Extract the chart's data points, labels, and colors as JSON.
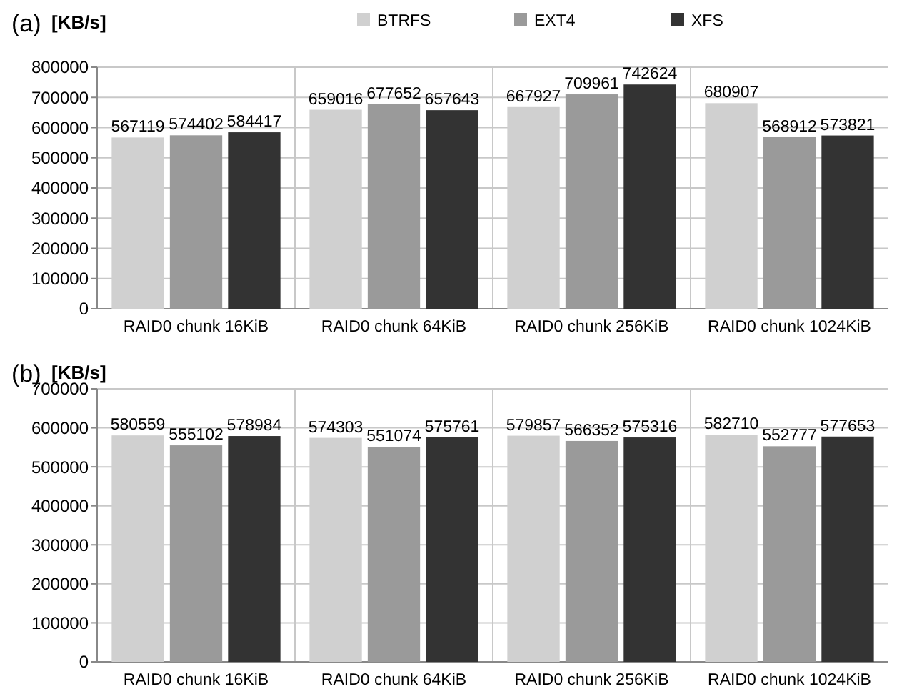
{
  "chart_data": [
    {
      "type": "bar",
      "title": "(a)",
      "ylabel": "[KB/s]",
      "categories": [
        "RAID0 chunk 16KiB",
        "RAID0 chunk 64KiB",
        "RAID0 chunk 256KiB",
        "RAID0 chunk 1024KiB"
      ],
      "series": [
        {
          "name": "BTRFS",
          "color": "#d0d0d0",
          "values": [
            567119,
            659016,
            667927,
            680907
          ]
        },
        {
          "name": "EXT4",
          "color": "#9a9a9a",
          "values": [
            574402,
            677652,
            709961,
            568912
          ]
        },
        {
          "name": "XFS",
          "color": "#333333",
          "values": [
            584417,
            657643,
            742624,
            573821
          ]
        }
      ],
      "ylim": [
        0,
        800000
      ],
      "yticks": [
        0,
        100000,
        200000,
        300000,
        400000,
        500000,
        600000,
        700000,
        800000
      ],
      "grid": true,
      "legend": "top",
      "data_labels": true
    },
    {
      "type": "bar",
      "title": "(b)",
      "ylabel": "[KB/s]",
      "categories": [
        "RAID0 chunk 16KiB",
        "RAID0 chunk 64KiB",
        "RAID0 chunk 256KiB",
        "RAID0 chunk 1024KiB"
      ],
      "series": [
        {
          "color": "#d0d0d0",
          "values": [
            580559,
            574303,
            579857,
            582710
          ]
        },
        {
          "color": "#9a9a9a",
          "values": [
            555102,
            551074,
            566352,
            552777
          ]
        },
        {
          "color": "#333333",
          "values": [
            578984,
            575761,
            575316,
            577653
          ]
        }
      ],
      "ylim": [
        0,
        700000
      ],
      "yticks": [
        0,
        100000,
        200000,
        300000,
        400000,
        500000,
        600000,
        700000
      ],
      "grid": true,
      "legend": false,
      "data_labels": true
    }
  ]
}
